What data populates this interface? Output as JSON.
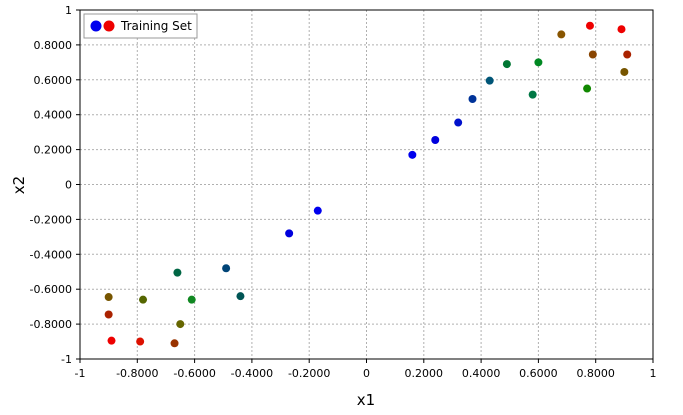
{
  "chart_data": {
    "type": "scatter",
    "title": "",
    "xlabel": "x1",
    "ylabel": "x2",
    "xlim": [
      -1,
      1
    ],
    "ylim": [
      -1,
      1
    ],
    "grid": true,
    "legend_position": "top-left",
    "legend": {
      "label": "Training Set",
      "colors": [
        "#0000ee",
        "#ee0000"
      ]
    },
    "x_ticks": [
      {
        "value": -1,
        "label": "-1"
      },
      {
        "value": -0.8,
        "label": "-0.8000"
      },
      {
        "value": -0.6,
        "label": "-0.6000"
      },
      {
        "value": -0.4,
        "label": "-0.4000"
      },
      {
        "value": -0.2,
        "label": "-0.2000"
      },
      {
        "value": 0,
        "label": "0"
      },
      {
        "value": 0.2,
        "label": "0.2000"
      },
      {
        "value": 0.4,
        "label": "0.4000"
      },
      {
        "value": 0.6,
        "label": "0.6000"
      },
      {
        "value": 0.8,
        "label": "0.8000"
      },
      {
        "value": 1,
        "label": "1"
      }
    ],
    "y_ticks": [
      {
        "value": 1,
        "label": "1"
      },
      {
        "value": 0.8,
        "label": "0.8000"
      },
      {
        "value": 0.6,
        "label": "0.6000"
      },
      {
        "value": 0.4,
        "label": "0.4000"
      },
      {
        "value": 0.2,
        "label": "0.2000"
      },
      {
        "value": 0,
        "label": "0"
      },
      {
        "value": -0.2,
        "label": "-0.2000"
      },
      {
        "value": -0.4,
        "label": "-0.4000"
      },
      {
        "value": -0.6,
        "label": "-0.6000"
      },
      {
        "value": -0.8,
        "label": "-0.8000"
      },
      {
        "value": -1,
        "label": "-1"
      }
    ],
    "points": [
      {
        "x": 0.78,
        "y": 0.91,
        "color": "#ee0000"
      },
      {
        "x": 0.89,
        "y": 0.89,
        "color": "#ee0000"
      },
      {
        "x": 0.68,
        "y": 0.86,
        "color": "#885500"
      },
      {
        "x": 0.79,
        "y": 0.745,
        "color": "#884400"
      },
      {
        "x": 0.91,
        "y": 0.745,
        "color": "#aa2200"
      },
      {
        "x": 0.9,
        "y": 0.645,
        "color": "#775500"
      },
      {
        "x": 0.49,
        "y": 0.69,
        "color": "#007733"
      },
      {
        "x": 0.6,
        "y": 0.7,
        "color": "#008822"
      },
      {
        "x": 0.43,
        "y": 0.595,
        "color": "#005577"
      },
      {
        "x": 0.58,
        "y": 0.515,
        "color": "#007744"
      },
      {
        "x": 0.77,
        "y": 0.55,
        "color": "#118800"
      },
      {
        "x": 0.37,
        "y": 0.49,
        "color": "#003399"
      },
      {
        "x": 0.32,
        "y": 0.355,
        "color": "#0011cc"
      },
      {
        "x": 0.24,
        "y": 0.255,
        "color": "#0000dd"
      },
      {
        "x": 0.16,
        "y": 0.17,
        "color": "#0000ee"
      },
      {
        "x": -0.17,
        "y": -0.15,
        "color": "#0000ee"
      },
      {
        "x": -0.27,
        "y": -0.28,
        "color": "#0000dd"
      },
      {
        "x": -0.49,
        "y": -0.48,
        "color": "#004477"
      },
      {
        "x": -0.44,
        "y": -0.64,
        "color": "#005555"
      },
      {
        "x": -0.66,
        "y": -0.505,
        "color": "#006644"
      },
      {
        "x": -0.61,
        "y": -0.66,
        "color": "#118822"
      },
      {
        "x": -0.9,
        "y": -0.645,
        "color": "#775500"
      },
      {
        "x": -0.78,
        "y": -0.66,
        "color": "#556600"
      },
      {
        "x": -0.9,
        "y": -0.745,
        "color": "#aa2200"
      },
      {
        "x": -0.65,
        "y": -0.8,
        "color": "#666600"
      },
      {
        "x": -0.89,
        "y": -0.895,
        "color": "#ee0000"
      },
      {
        "x": -0.79,
        "y": -0.9,
        "color": "#dd1100"
      },
      {
        "x": -0.67,
        "y": -0.91,
        "color": "#993300"
      }
    ]
  }
}
